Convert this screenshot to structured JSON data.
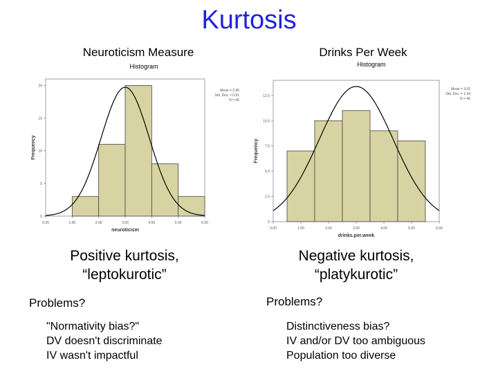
{
  "title": "Kurtosis",
  "left": {
    "heading": "Neuroticism Measure",
    "caption": [
      "Positive kurtosis,",
      "“leptokurotic”"
    ],
    "problems_label": "Problems?",
    "problems": [
      "\"Normativity bias?\"",
      "DV doesn't discriminate",
      "IV wasn't impactful"
    ]
  },
  "right": {
    "heading": "Drinks Per Week",
    "caption": [
      "Negative kurtosis,",
      "“platykurotic”"
    ],
    "problems_label": "Problems?",
    "problems": [
      "Distinctiveness bias?",
      "IV and/or DV too ambiguous",
      "Population too diverse"
    ]
  },
  "chart_data": [
    {
      "type": "bar",
      "title": "Histogram",
      "xlabel": "neuroticism",
      "ylabel": "Frequency",
      "x_ticks": [
        "0.00",
        "1.00",
        "2.00",
        "3.00",
        "4.00",
        "5.00",
        "6.00"
      ],
      "y_ticks": [
        "0",
        "5",
        "10",
        "15",
        "20"
      ],
      "xlim": [
        0,
        6
      ],
      "ylim": [
        0,
        21
      ],
      "bins": [
        {
          "x0": 1,
          "x1": 2,
          "count": 3
        },
        {
          "x0": 2,
          "x1": 3,
          "count": 11
        },
        {
          "x0": 3,
          "x1": 4,
          "count": 20
        },
        {
          "x0": 4,
          "x1": 5,
          "count": 8
        },
        {
          "x0": 5,
          "x1": 6,
          "count": 3
        }
      ],
      "normal_curve": {
        "mean": 3.0,
        "sd": 0.91,
        "n": 45,
        "bin_width": 1
      },
      "stats": [
        "Mean = 2.95",
        "Std. Dev. = 0.91",
        "N = 45"
      ],
      "bar_color": "#d8d3a2",
      "curve_color": "#000000"
    },
    {
      "type": "bar",
      "title": "Histogram",
      "xlabel": "drinks.per.week",
      "ylabel": "Frequency",
      "x_ticks": [
        "0.00",
        "1.00",
        "2.00",
        "3.00",
        "4.00",
        "5.00",
        "6.00"
      ],
      "y_ticks": [
        "0",
        "2.5",
        "5.0",
        "7.5",
        "10.0",
        "12.5"
      ],
      "xlim": [
        0,
        6
      ],
      "ylim": [
        0,
        14
      ],
      "bins": [
        {
          "x0": 0.5,
          "x1": 1.5,
          "count": 7
        },
        {
          "x0": 1.5,
          "x1": 2.5,
          "count": 10
        },
        {
          "x0": 2.5,
          "x1": 3.5,
          "count": 11
        },
        {
          "x0": 3.5,
          "x1": 4.5,
          "count": 9
        },
        {
          "x0": 4.5,
          "x1": 5.5,
          "count": 8
        }
      ],
      "normal_curve": {
        "mean": 3.0,
        "sd": 1.34,
        "n": 45,
        "bin_width": 1
      },
      "stats": [
        "Mean = 3.02",
        "Std. Dev. = 1.34",
        "N = 45"
      ],
      "bar_color": "#d8d3a2",
      "curve_color": "#000000"
    }
  ]
}
